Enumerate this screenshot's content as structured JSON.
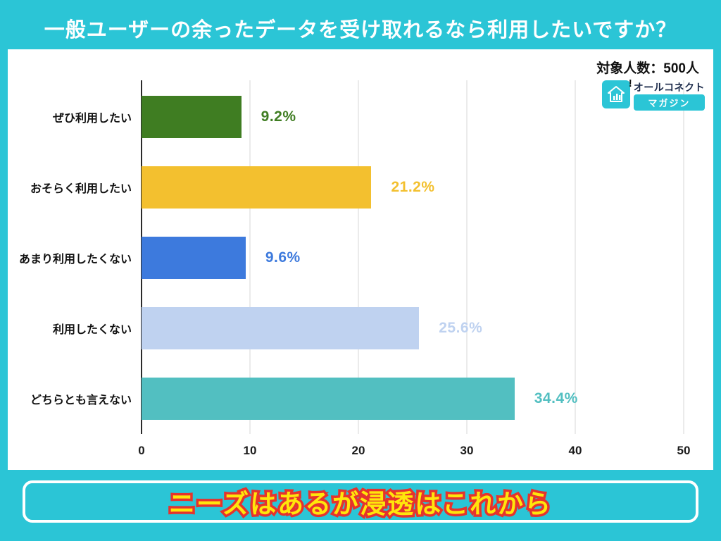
{
  "header": {
    "title": "一般ユーザーの余ったデータを受け取れるなら利用したいですか？"
  },
  "meta": {
    "sample_size_label": "対象人数：500人"
  },
  "logo": {
    "line1": "オールコネクト",
    "line2": "マガジン",
    "icon": "house-chart-icon"
  },
  "chart_data": {
    "type": "bar",
    "orientation": "horizontal",
    "title": "一般ユーザーの余ったデータを受け取れるなら利用したいですか？",
    "categories": [
      "ぜひ利用したい",
      "おそらく利用したい",
      "あまり利用したくない",
      "利用したくない",
      "どちらとも言えない"
    ],
    "values": [
      9.2,
      21.2,
      9.6,
      25.6,
      34.4
    ],
    "value_labels": [
      "9.2%",
      "21.2%",
      "9.6%",
      "25.6%",
      "34.4%"
    ],
    "bar_colors": [
      "#3F7D22",
      "#F3C02F",
      "#3D7ADD",
      "#BFD2F0",
      "#52BFC1"
    ],
    "xlim": [
      0,
      50
    ],
    "xticks": [
      0,
      10,
      20,
      30,
      40,
      50
    ],
    "grid": true,
    "legend": false,
    "xlabel": "",
    "ylabel": ""
  },
  "footer": {
    "conclusion": "ニーズはあるが浸透はこれから"
  },
  "colors": {
    "background": "#2BC5D6",
    "chart_background": "#ffffff",
    "title_text": "#ffffff",
    "conclusion_text": "#FFE60B",
    "conclusion_outline": "#E5332D"
  }
}
